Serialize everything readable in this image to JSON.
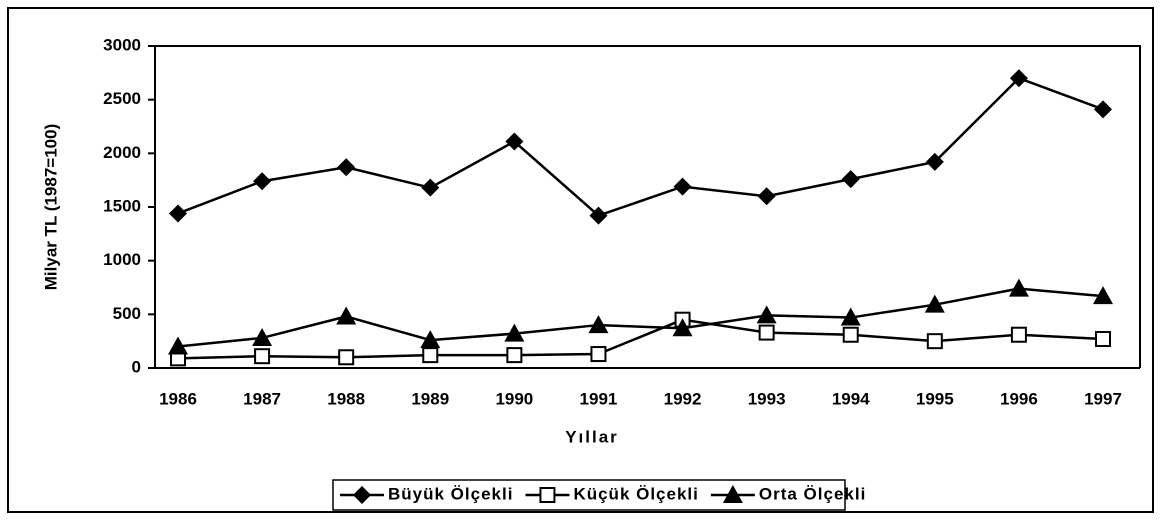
{
  "chart_data": {
    "type": "line",
    "x_label": "Yıllar",
    "y_label": "Milyar TL (1987=100)",
    "categories": [
      "1986",
      "1987",
      "1988",
      "1989",
      "1990",
      "1991",
      "1992",
      "1993",
      "1994",
      "1995",
      "1996",
      "1997"
    ],
    "series": [
      {
        "name": "Büyük Ölçekli",
        "color": "#000000",
        "marker": "diamond",
        "values": [
          1440,
          1740,
          1870,
          1680,
          2110,
          1420,
          1690,
          1600,
          1760,
          1920,
          2700,
          2410
        ]
      },
      {
        "name": "Küçük Ölçekli",
        "color": "#000000",
        "marker": "square",
        "values": [
          90,
          110,
          100,
          120,
          120,
          130,
          450,
          330,
          310,
          250,
          310,
          270
        ]
      },
      {
        "name": "Orta Ölçekli",
        "color": "#000000",
        "marker": "triangle",
        "values": [
          200,
          280,
          480,
          260,
          320,
          400,
          370,
          490,
          470,
          590,
          740,
          670
        ]
      }
    ],
    "ylim": [
      0,
      3000
    ],
    "yticks": [
      0,
      500,
      1000,
      1500,
      2000,
      2500,
      3000
    ],
    "grid": false,
    "legend": "bottom"
  }
}
